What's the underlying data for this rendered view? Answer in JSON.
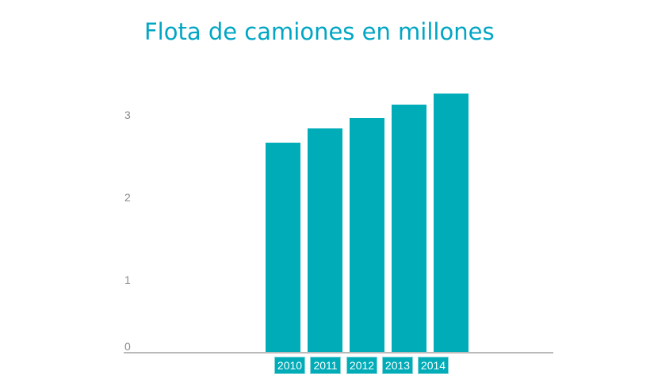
{
  "title": "Flota de camiones en millones",
  "colors": {
    "title": "#00a6c4",
    "bar": "#00acb8",
    "year_box_bg": "#00acb8",
    "year_box_border": "#86d6da",
    "year_box_text": "#ffffff",
    "axis_line": "#bababa",
    "tick_label": "#8a8a8a",
    "background": "#ffffff"
  },
  "chart_data": {
    "type": "bar",
    "title": "Flota de camiones en millones",
    "categories": [
      "2010",
      "2011",
      "2012",
      "2013",
      "2014"
    ],
    "values": [
      2.65,
      2.83,
      2.96,
      3.13,
      3.27
    ],
    "xlabel": "",
    "ylabel": "",
    "ylim": [
      0,
      3.4
    ],
    "yticks": [
      0,
      1,
      2,
      3
    ],
    "grid": false,
    "legend": false,
    "bar_color": "#00acb8",
    "x_tick_style": "teal boxes with white text below axis"
  }
}
